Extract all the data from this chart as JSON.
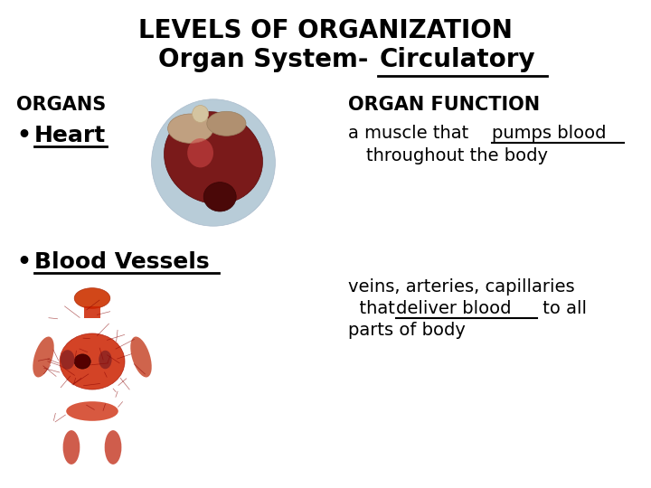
{
  "title_line1": "LEVELS OF ORGANIZATION",
  "title_line2_part1": "Organ System-  ",
  "title_line2_part2": "Circulatory",
  "organs_label": "ORGANS",
  "organ_function_label": "ORGAN FUNCTION",
  "bullet1": "Heart",
  "bullet2": "Blood Vessels",
  "func1_part1": "a muscle that ",
  "func1_underline": "pumps blood",
  "func1_line2": "throughout the body",
  "func2_line1": "veins, arteries, capillaries",
  "func2_part1": "  that ",
  "func2_underline": "deliver blood",
  "func2_part3": " to all",
  "func2_line3": "parts of body",
  "bg_color": "#ffffff",
  "text_color": "#000000",
  "title1_fs": 20,
  "title2_fs": 20,
  "label_fs": 15,
  "body_fs": 14,
  "bullet_fs": 16
}
